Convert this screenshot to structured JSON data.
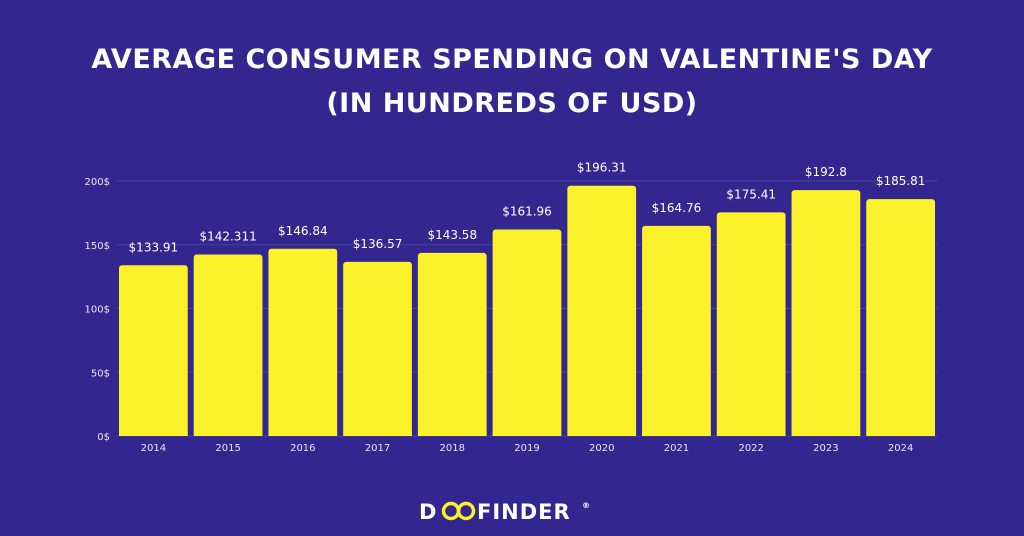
{
  "colors": {
    "background": "#33268e",
    "bar": "#fdf12c",
    "gridline": "#4b3fa0",
    "axis_text": "#e8e6f5",
    "label_text": "#ffffff"
  },
  "header": {
    "title_line1": "AVERAGE CONSUMER SPENDING ON VALENTINE'S DAY",
    "title_line2": "(IN HUNDREDS OF USD)"
  },
  "logo": {
    "text": "DOOFINDER",
    "mark": "®"
  },
  "chart_data": {
    "type": "bar",
    "title": "AVERAGE CONSUMER SPENDING ON VALENTINE'S DAY (IN HUNDREDS OF USD)",
    "categories": [
      "2014",
      "2015",
      "2016",
      "2017",
      "2018",
      "2019",
      "2020",
      "2021",
      "2022",
      "2023",
      "2024"
    ],
    "values": [
      133.91,
      142.311,
      146.84,
      136.57,
      143.58,
      161.96,
      196.31,
      164.76,
      175.41,
      192.8,
      185.81
    ],
    "data_labels": [
      "$133.91",
      "$142.311",
      "$146.84",
      "$136.57",
      "$143.58",
      "$161.96",
      "$196.31",
      "$164.76",
      "$175.41",
      "$192.8",
      "$185.81"
    ],
    "y_ticks": [
      0,
      50,
      100,
      150,
      200
    ],
    "y_tick_labels": [
      "0$",
      "50$",
      "100$",
      "150$",
      "200$"
    ],
    "ylim": [
      0,
      200
    ],
    "xlabel": "",
    "ylabel": "",
    "grid": true,
    "legend": "none"
  }
}
